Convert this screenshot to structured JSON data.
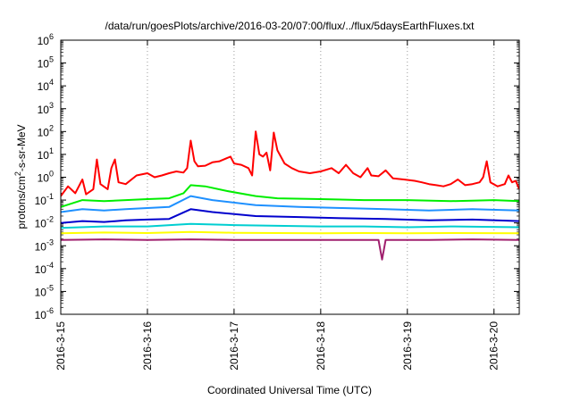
{
  "chart_data": {
    "type": "line",
    "title": "/data/run/goesPlots/archive/2016-03-20/07:00/flux/../flux/5daysEarthFluxes.txt",
    "xlabel": "Coordinated Universal Time (UTC)",
    "ylabel": {
      "prefix": "protons/cm",
      "sup": "2",
      "suffix": "-s-sr-MeV"
    },
    "y_scale": "log",
    "ylim": [
      1e-06,
      1000000.0
    ],
    "y_ticks": [
      {
        "value": 1e-06,
        "base": "10",
        "exp": "-6"
      },
      {
        "value": 1e-05,
        "base": "10",
        "exp": "-5"
      },
      {
        "value": 0.0001,
        "base": "10",
        "exp": "-4"
      },
      {
        "value": 0.001,
        "base": "10",
        "exp": "-3"
      },
      {
        "value": 0.01,
        "base": "10",
        "exp": "-2"
      },
      {
        "value": 0.1,
        "base": "10",
        "exp": "-1"
      },
      {
        "value": 1,
        "base": "10",
        "exp": "0"
      },
      {
        "value": 10,
        "base": "10",
        "exp": "1"
      },
      {
        "value": 100,
        "base": "10",
        "exp": "2"
      },
      {
        "value": 1000,
        "base": "10",
        "exp": "3"
      },
      {
        "value": 10000,
        "base": "10",
        "exp": "4"
      },
      {
        "value": 100000,
        "base": "10",
        "exp": "5"
      },
      {
        "value": 1000000,
        "base": "10",
        "exp": "6"
      }
    ],
    "xlim": [
      "2016-03-15 00:00",
      "2016-03-20 07:00"
    ],
    "x_ticks": [
      "2016-3-15",
      "2016-3-16",
      "2016-3-17",
      "2016-3-18",
      "2016-3-19",
      "2016-3-20"
    ],
    "grid": {
      "x": true,
      "y": false,
      "style": "dotted"
    },
    "series": [
      {
        "color": "#ff0000",
        "points": [
          [
            "2016-03-15 00:00",
            0.15
          ],
          [
            "2016-03-15 02:00",
            0.4
          ],
          [
            "2016-03-15 04:00",
            0.2
          ],
          [
            "2016-03-15 06:00",
            0.8
          ],
          [
            "2016-03-15 07:00",
            0.18
          ],
          [
            "2016-03-15 09:00",
            0.3
          ],
          [
            "2016-03-15 10:00",
            6
          ],
          [
            "2016-03-15 11:00",
            0.5
          ],
          [
            "2016-03-15 13:00",
            0.3
          ],
          [
            "2016-03-15 14:00",
            2.5
          ],
          [
            "2016-03-15 15:00",
            6
          ],
          [
            "2016-03-15 16:00",
            0.6
          ],
          [
            "2016-03-15 18:00",
            0.5
          ],
          [
            "2016-03-15 21:00",
            1.2
          ],
          [
            "2016-03-16 00:00",
            1.5
          ],
          [
            "2016-03-16 02:00",
            1.0
          ],
          [
            "2016-03-16 04:00",
            1.2
          ],
          [
            "2016-03-16 06:00",
            1.5
          ],
          [
            "2016-03-16 08:00",
            1.8
          ],
          [
            "2016-03-16 10:00",
            1.6
          ],
          [
            "2016-03-16 11:00",
            2.5
          ],
          [
            "2016-03-16 12:00",
            40
          ],
          [
            "2016-03-16 13:00",
            5
          ],
          [
            "2016-03-16 14:00",
            3
          ],
          [
            "2016-03-16 16:00",
            3.2
          ],
          [
            "2016-03-16 18:00",
            4.5
          ],
          [
            "2016-03-16 20:00",
            5
          ],
          [
            "2016-03-16 23:00",
            8
          ],
          [
            "2016-03-17 00:00",
            4
          ],
          [
            "2016-03-17 02:00",
            3.5
          ],
          [
            "2016-03-17 04:00",
            2.5
          ],
          [
            "2016-03-17 05:00",
            1.2
          ],
          [
            "2016-03-17 06:00",
            100
          ],
          [
            "2016-03-17 07:00",
            10
          ],
          [
            "2016-03-17 08:00",
            8
          ],
          [
            "2016-03-17 09:00",
            12
          ],
          [
            "2016-03-17 10:00",
            2
          ],
          [
            "2016-03-17 11:00",
            90
          ],
          [
            "2016-03-17 12:00",
            15
          ],
          [
            "2016-03-17 14:00",
            4
          ],
          [
            "2016-03-17 16:00",
            2.5
          ],
          [
            "2016-03-17 18:00",
            1.8
          ],
          [
            "2016-03-17 21:00",
            1.5
          ],
          [
            "2016-03-18 00:00",
            1.8
          ],
          [
            "2016-03-18 03:00",
            2.5
          ],
          [
            "2016-03-18 05:00",
            1.5
          ],
          [
            "2016-03-18 07:00",
            3.5
          ],
          [
            "2016-03-18 09:00",
            1.5
          ],
          [
            "2016-03-18 11:00",
            1.0
          ],
          [
            "2016-03-18 13:00",
            2.5
          ],
          [
            "2016-03-18 14:00",
            1.2
          ],
          [
            "2016-03-18 16:00",
            1.1
          ],
          [
            "2016-03-18 18:00",
            2
          ],
          [
            "2016-03-18 20:00",
            0.9
          ],
          [
            "2016-03-18 23:00",
            0.8
          ],
          [
            "2016-03-19 02:00",
            0.7
          ],
          [
            "2016-03-19 04:00",
            0.6
          ],
          [
            "2016-03-19 06:00",
            0.5
          ],
          [
            "2016-03-19 08:00",
            0.45
          ],
          [
            "2016-03-19 10:00",
            0.4
          ],
          [
            "2016-03-19 12:00",
            0.5
          ],
          [
            "2016-03-19 14:00",
            0.8
          ],
          [
            "2016-03-19 16:00",
            0.45
          ],
          [
            "2016-03-19 18:00",
            0.5
          ],
          [
            "2016-03-19 20:00",
            0.6
          ],
          [
            "2016-03-19 21:00",
            1.0
          ],
          [
            "2016-03-19 22:00",
            5
          ],
          [
            "2016-03-19 23:00",
            0.6
          ],
          [
            "2016-03-20 01:00",
            0.4
          ],
          [
            "2016-03-20 03:00",
            0.5
          ],
          [
            "2016-03-20 04:00",
            1.2
          ],
          [
            "2016-03-20 05:00",
            0.6
          ],
          [
            "2016-03-20 06:00",
            0.7
          ],
          [
            "2016-03-20 07:00",
            0.3
          ]
        ]
      },
      {
        "color": "#00ee00",
        "points": [
          [
            "2016-03-15 00:00",
            0.05
          ],
          [
            "2016-03-15 06:00",
            0.1
          ],
          [
            "2016-03-15 12:00",
            0.09
          ],
          [
            "2016-03-15 18:00",
            0.1
          ],
          [
            "2016-03-16 00:00",
            0.11
          ],
          [
            "2016-03-16 06:00",
            0.12
          ],
          [
            "2016-03-16 10:00",
            0.2
          ],
          [
            "2016-03-16 12:00",
            0.45
          ],
          [
            "2016-03-16 16:00",
            0.4
          ],
          [
            "2016-03-16 22:00",
            0.25
          ],
          [
            "2016-03-17 06:00",
            0.15
          ],
          [
            "2016-03-17 12:00",
            0.12
          ],
          [
            "2016-03-18 00:00",
            0.11
          ],
          [
            "2016-03-18 12:00",
            0.1
          ],
          [
            "2016-03-19 00:00",
            0.1
          ],
          [
            "2016-03-19 12:00",
            0.09
          ],
          [
            "2016-03-20 00:00",
            0.1
          ],
          [
            "2016-03-20 07:00",
            0.09
          ]
        ]
      },
      {
        "color": "#1e90ff",
        "points": [
          [
            "2016-03-15 00:00",
            0.03
          ],
          [
            "2016-03-15 06:00",
            0.04
          ],
          [
            "2016-03-15 12:00",
            0.035
          ],
          [
            "2016-03-15 18:00",
            0.04
          ],
          [
            "2016-03-16 00:00",
            0.045
          ],
          [
            "2016-03-16 06:00",
            0.05
          ],
          [
            "2016-03-16 12:00",
            0.15
          ],
          [
            "2016-03-16 18:00",
            0.1
          ],
          [
            "2016-03-17 06:00",
            0.06
          ],
          [
            "2016-03-17 18:00",
            0.05
          ],
          [
            "2016-03-18 06:00",
            0.045
          ],
          [
            "2016-03-18 18:00",
            0.04
          ],
          [
            "2016-03-19 06:00",
            0.035
          ],
          [
            "2016-03-19 18:00",
            0.04
          ],
          [
            "2016-03-20 07:00",
            0.035
          ]
        ]
      },
      {
        "color": "#0000cd",
        "points": [
          [
            "2016-03-15 00:00",
            0.01
          ],
          [
            "2016-03-15 06:00",
            0.012
          ],
          [
            "2016-03-15 12:00",
            0.011
          ],
          [
            "2016-03-15 18:00",
            0.013
          ],
          [
            "2016-03-16 00:00",
            0.014
          ],
          [
            "2016-03-16 06:00",
            0.015
          ],
          [
            "2016-03-16 12:00",
            0.04
          ],
          [
            "2016-03-16 18:00",
            0.03
          ],
          [
            "2016-03-17 06:00",
            0.02
          ],
          [
            "2016-03-17 18:00",
            0.018
          ],
          [
            "2016-03-18 06:00",
            0.016
          ],
          [
            "2016-03-18 18:00",
            0.015
          ],
          [
            "2016-03-19 06:00",
            0.013
          ],
          [
            "2016-03-19 18:00",
            0.014
          ],
          [
            "2016-03-20 07:00",
            0.012
          ]
        ]
      },
      {
        "color": "#00ced1",
        "points": [
          [
            "2016-03-15 00:00",
            0.006
          ],
          [
            "2016-03-15 12:00",
            0.007
          ],
          [
            "2016-03-16 00:00",
            0.007
          ],
          [
            "2016-03-16 12:00",
            0.009
          ],
          [
            "2016-03-17 00:00",
            0.008
          ],
          [
            "2016-03-17 12:00",
            0.0075
          ],
          [
            "2016-03-18 00:00",
            0.007
          ],
          [
            "2016-03-18 12:00",
            0.007
          ],
          [
            "2016-03-19 00:00",
            0.0065
          ],
          [
            "2016-03-19 12:00",
            0.007
          ],
          [
            "2016-03-20 07:00",
            0.0065
          ]
        ]
      },
      {
        "color": "#ffff00",
        "points": [
          [
            "2016-03-15 00:00",
            0.0035
          ],
          [
            "2016-03-15 12:00",
            0.0038
          ],
          [
            "2016-03-16 00:00",
            0.0036
          ],
          [
            "2016-03-16 12:00",
            0.004
          ],
          [
            "2016-03-17 00:00",
            0.0037
          ],
          [
            "2016-03-17 12:00",
            0.0036
          ],
          [
            "2016-03-18 00:00",
            0.0035
          ],
          [
            "2016-03-18 12:00",
            0.0036
          ],
          [
            "2016-03-19 00:00",
            0.0035
          ],
          [
            "2016-03-19 12:00",
            0.0036
          ],
          [
            "2016-03-20 07:00",
            0.0035
          ]
        ]
      },
      {
        "color": "#a0206e",
        "points": [
          [
            "2016-03-15 00:00",
            0.0018
          ],
          [
            "2016-03-15 12:00",
            0.0019
          ],
          [
            "2016-03-16 00:00",
            0.0018
          ],
          [
            "2016-03-16 12:00",
            0.0019
          ],
          [
            "2016-03-17 00:00",
            0.0018
          ],
          [
            "2016-03-17 12:00",
            0.0018
          ],
          [
            "2016-03-18 00:00",
            0.0018
          ],
          [
            "2016-03-18 16:00",
            0.0018
          ],
          [
            "2016-03-18 17:00",
            0.00025
          ],
          [
            "2016-03-18 18:00",
            0.0018
          ],
          [
            "2016-03-19 06:00",
            0.0018
          ],
          [
            "2016-03-19 18:00",
            0.0019
          ],
          [
            "2016-03-20 07:00",
            0.0018
          ]
        ]
      }
    ]
  }
}
